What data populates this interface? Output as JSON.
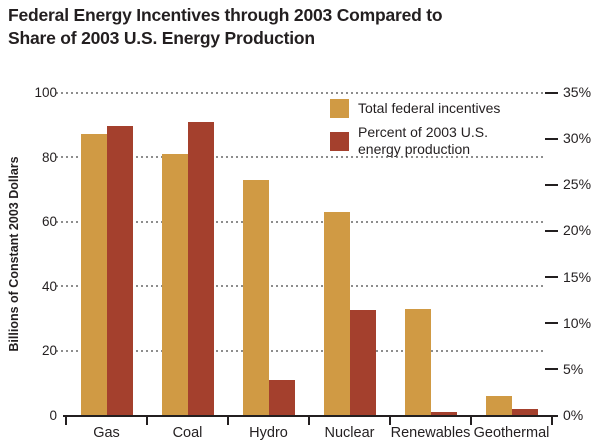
{
  "title": {
    "line1": "Federal Energy Incentives through 2003 Compared to",
    "line2": "Share of 2003 U.S. Energy Production"
  },
  "legend": {
    "items": [
      {
        "label_lines": [
          "Total federal incentives"
        ],
        "color": "#d09a44"
      },
      {
        "label_lines": [
          "Percent of 2003 U.S.",
          "energy production"
        ],
        "color": "#a4402d"
      }
    ]
  },
  "chart_data": {
    "type": "bar",
    "title": "Federal Energy Incentives through 2003 Compared to Share of 2003 U.S. Energy Production",
    "categories": [
      "Gas",
      "Coal",
      "Hydro",
      "Nuclear",
      "Renewables",
      "Geothermal"
    ],
    "series": [
      {
        "name": "Total federal incentives",
        "axis": "left",
        "unit": "billions of constant 2003 dollars",
        "color": "#d09a44",
        "values": [
          87,
          81,
          73,
          63,
          33,
          6
        ]
      },
      {
        "name": "Percent of 2003 U.S. energy production",
        "axis": "right",
        "unit": "percent",
        "color": "#a4402d",
        "values": [
          31.4,
          31.8,
          3.8,
          11.4,
          0.4,
          0.7
        ]
      }
    ],
    "left_axis": {
      "label": "Billions of Constant 2003 Dollars",
      "min": 0,
      "max": 100,
      "tick_labels": [
        "0",
        "20",
        "40",
        "60",
        "80",
        "100"
      ]
    },
    "right_axis": {
      "min": 0,
      "max": 35,
      "tick_labels": [
        "0%",
        "5%",
        "10%",
        "15%",
        "20%",
        "25%",
        "30%",
        "35%"
      ]
    },
    "grid": "horizontal dotted lines at left-axis ticks",
    "legend_position": "inside top-right"
  },
  "colors": {
    "bar_gold": "#d09a44",
    "bar_red": "#a4402d",
    "text": "#231f20",
    "grid": "#8d8d8d",
    "background": "#ffffff"
  }
}
